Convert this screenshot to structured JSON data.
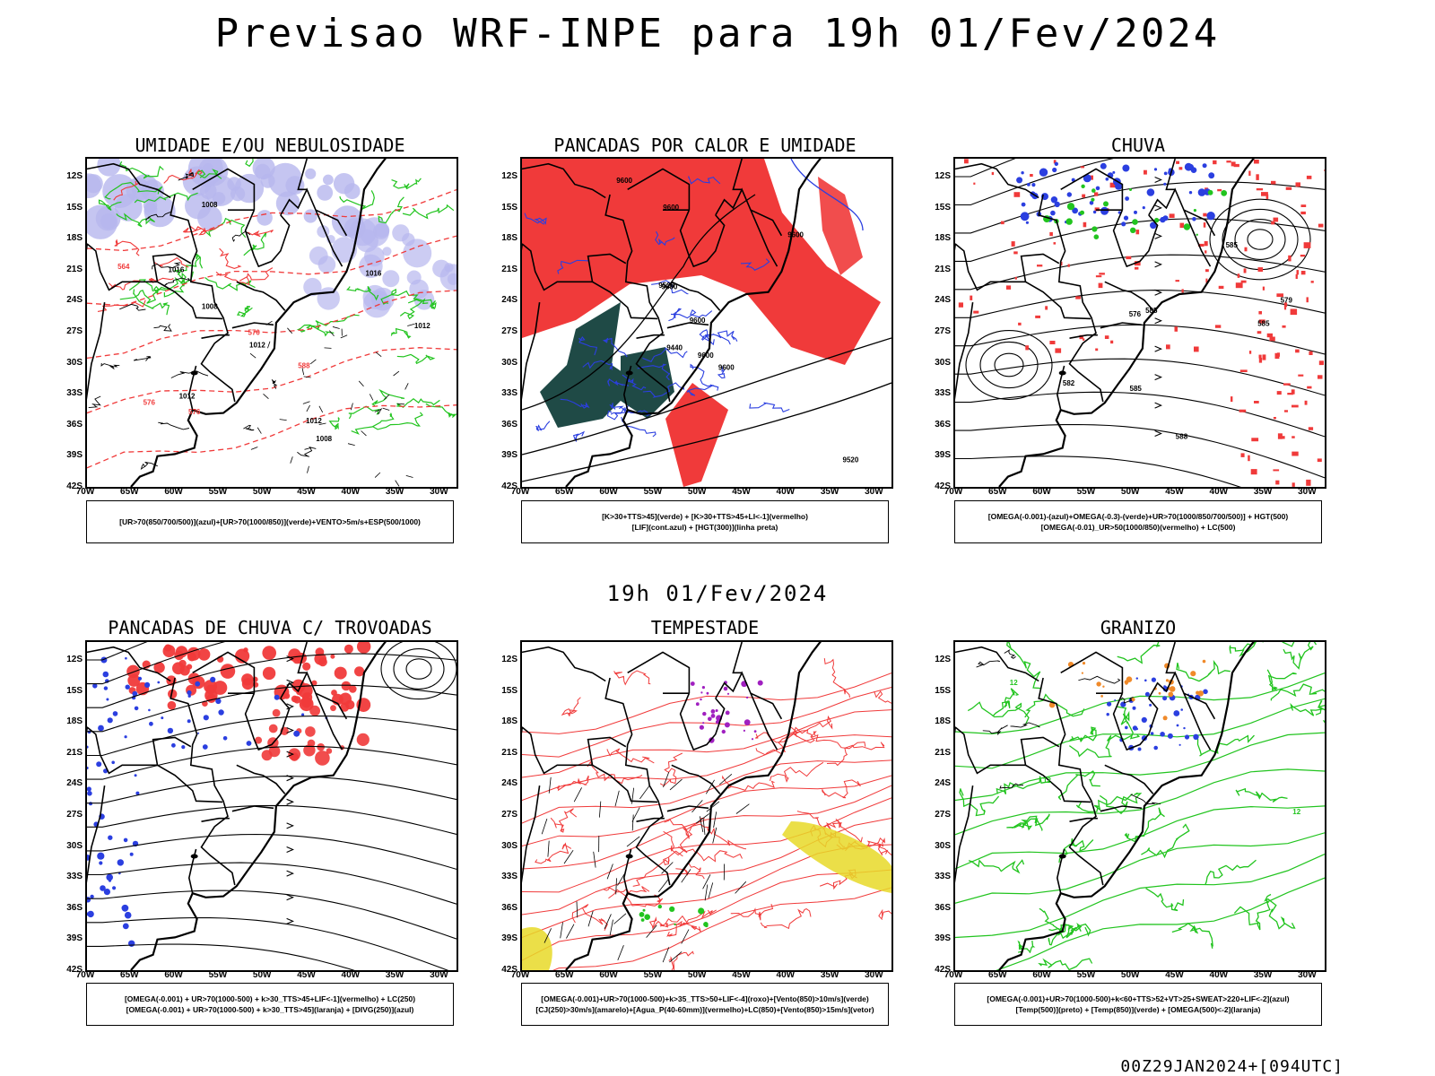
{
  "title": "Previsao WRF-INPE  para 19h 01/Fev/2024",
  "mid_title": "19h 01/Fev/2024",
  "footer_code": "00Z29JAN2024+[094UTC]",
  "lat_labels": [
    "12S",
    "15S",
    "18S",
    "21S",
    "24S",
    "27S",
    "30S",
    "33S",
    "36S",
    "39S",
    "42S"
  ],
  "lon_labels": [
    "70W",
    "65W",
    "60W",
    "55W",
    "50W",
    "45W",
    "40W",
    "35W",
    "30W"
  ],
  "panels": [
    {
      "title": "UMIDADE E/OU NEBULOSIDADE",
      "legend": [
        "[UR>70(850/700/500)](azul)+[UR>70(1000/850)](verde)+VENTO>5m/s+ESP(500/1000)"
      ],
      "contour_labels": [
        "1008",
        "1008",
        "1012",
        "1016",
        "1016",
        "1012",
        "1012",
        "1008",
        "1012",
        "576",
        "576",
        "564",
        "570",
        "588"
      ]
    },
    {
      "title": "PANCADAS POR CALOR E UMIDADE",
      "legend": [
        "[K>30+TTS>45](verde) + [K>30+TTS>45+LI<-1](vermelho)",
        "[LIF](cont.azul) + [HGT(300)](linha preta)"
      ],
      "contour_labels": [
        "9600",
        "9600",
        "9600",
        "9600",
        "9600",
        "9600",
        "9520",
        "9440",
        "9520",
        "9600"
      ]
    },
    {
      "title": "CHUVA",
      "legend": [
        "[OMEGA(-0.001)-(azul)+OMEGA(-0.3)-(verde)+UR>70(1000/850/700/500)] + HGT(500)",
        "[OMEGA(-0.01)_UR>50(1000/850)(vermelho) + LC(500)"
      ],
      "contour_labels": [
        "585",
        "588",
        "585",
        "582",
        "579",
        "576",
        "585",
        "585"
      ]
    },
    {
      "title": "PANCADAS DE CHUVA C/ TROVOADAS",
      "legend": [
        "[OMEGA(-0.001) + UR>70(1000-500) + k>30_TTS>45+LIF<-1](vermelho) + LC(250)",
        "[OMEGA(-0.001) + UR>70(1000-500) + k>30_TTS>45](laranja) + [DIVG(250)](azul)"
      ],
      "contour_labels": []
    },
    {
      "title": "TEMPESTADE",
      "legend": [
        "[OMEGA(-0.001)+UR>70(1000-500)+k>35_TTS>50+LIF<-4](roxo)+[Vento(850)>10m/s](verde)",
        "[CJ(250)>30m/s](amarelo)+[Agua_P(40-60mm)](vermelho)+LC(850)+[Vento(850)>15m/s](vetor)"
      ],
      "contour_labels": []
    },
    {
      "title": "GRANIZO",
      "legend": [
        "[OMEGA(-0.001)+UR>70(1000-500)+k<60+TTS>52+VT>25+SWEAT>220+LIF<-2](azul)",
        "[Temp(500)](preto) + [Temp(850)](verde) + [OMEGA(500)<-2](laranja)"
      ],
      "contour_labels": [
        "12",
        "12",
        "12"
      ]
    }
  ],
  "colors": {
    "blue": "#2b3fe0",
    "green": "#22c41f",
    "red": "#f03a3a",
    "lavender": "#b6b6ee",
    "darkteal": "#1f4a46",
    "yellow": "#e7d928",
    "orange": "#f08a2a",
    "purple": "#a020c0"
  }
}
